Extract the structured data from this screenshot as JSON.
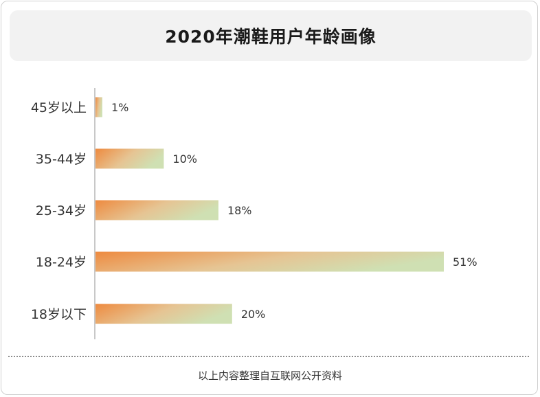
{
  "title": "2020年潮鞋用户年龄画像",
  "source_note": "以上内容整理自互联网公开资料",
  "colors": {
    "bar_start": "#ee8a3f",
    "bar_mid": "#e6c493",
    "bar_end": "#cfe0b3",
    "axis": "#c8c8c8",
    "label": "#333333"
  },
  "chart_data": {
    "type": "bar",
    "orientation": "horizontal",
    "title": "2020年潮鞋用户年龄画像",
    "xlabel": "",
    "ylabel": "",
    "unit": "%",
    "grid": false,
    "categories": [
      "45岁以上",
      "35-44岁",
      "25-34岁",
      "18-24岁",
      "18岁以下"
    ],
    "values": [
      1,
      10,
      18,
      51,
      20
    ],
    "value_labels": [
      "1%",
      "10%",
      "18%",
      "51%",
      "20%"
    ],
    "xlim": [
      0,
      51
    ]
  }
}
